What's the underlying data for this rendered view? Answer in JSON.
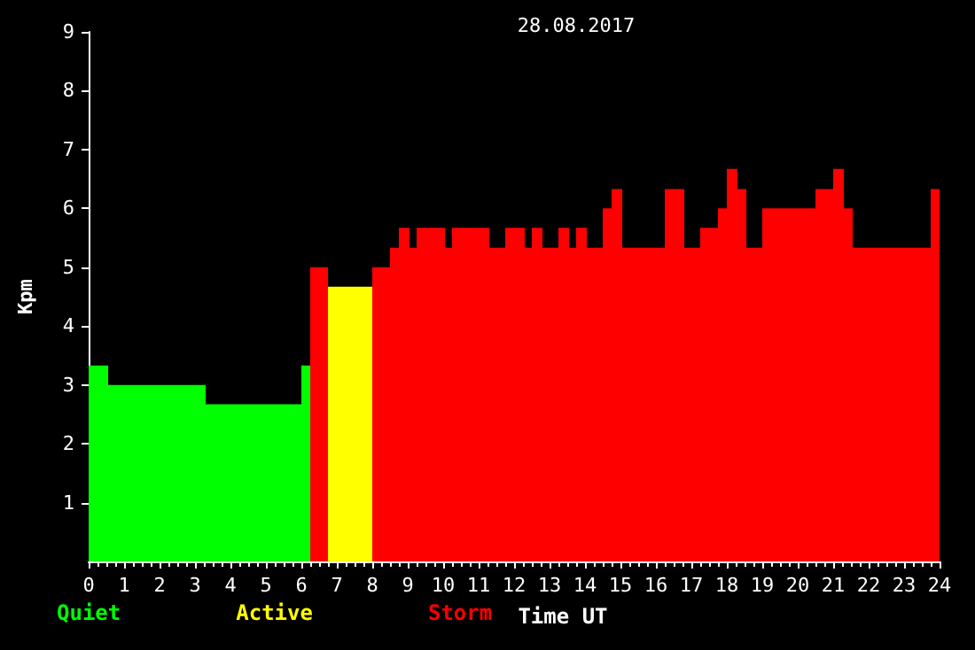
{
  "chart_data": {
    "type": "histogram",
    "title": "28.08.2017",
    "xlabel": "Time UT",
    "ylabel": "Kpm",
    "bins": [
      0,
      0.55,
      3.3,
      6,
      6.25,
      6.75,
      8,
      8.5,
      8.75,
      9.05,
      9.25,
      10.05,
      10.25,
      11.3,
      11.75,
      12.3,
      12.5,
      12.8,
      13.25,
      13.55,
      13.75,
      14.05,
      14.5,
      14.75,
      15.05,
      16.25,
      16.8,
      17.25,
      17.75,
      18,
      18.3,
      18.55,
      19,
      20.5,
      21,
      21.3,
      21.55,
      23.75,
      24
    ],
    "series": [
      {
        "name": "Quiet",
        "color": "#00ff00",
        "values": [
          3.33,
          3,
          2.67,
          3.33,
          null,
          null,
          null,
          null,
          null,
          null,
          null,
          null,
          null,
          null,
          null,
          null,
          null,
          null,
          null,
          null,
          null,
          null,
          null,
          null,
          null,
          null,
          null,
          null,
          null,
          null,
          null,
          null,
          null,
          null,
          null,
          null,
          null,
          null
        ]
      },
      {
        "name": "Active",
        "color": "#ffff00",
        "values": [
          null,
          null,
          null,
          null,
          null,
          4.67,
          null,
          null,
          null,
          null,
          null,
          null,
          null,
          null,
          null,
          null,
          null,
          null,
          null,
          null,
          null,
          null,
          null,
          null,
          null,
          null,
          null,
          null,
          null,
          null,
          null,
          null,
          null,
          null,
          null,
          null,
          null,
          null
        ]
      },
      {
        "name": "Storm",
        "color": "#ff0000",
        "values": [
          null,
          null,
          null,
          null,
          5,
          null,
          5,
          5.33,
          5.67,
          5.33,
          5.67,
          5.33,
          5.67,
          5.33,
          5.67,
          5.33,
          5.67,
          5.33,
          5.67,
          5.33,
          5.67,
          5.33,
          6,
          6.33,
          5.33,
          6.33,
          5.33,
          5.67,
          6,
          6.67,
          6.33,
          5.33,
          6,
          6.33,
          6.67,
          6,
          5.33,
          6.33
        ]
      }
    ],
    "xlim": [
      0,
      24
    ],
    "xticks": [
      0,
      1,
      2,
      3,
      4,
      5,
      6,
      7,
      8,
      9,
      10,
      11,
      12,
      13,
      14,
      15,
      16,
      17,
      18,
      19,
      20,
      21,
      22,
      23,
      24
    ],
    "ylim": [
      0,
      9
    ],
    "yticks": [
      1,
      2,
      3,
      4,
      5,
      6,
      7,
      8,
      9
    ],
    "grid": false,
    "legend": "bottom left"
  }
}
